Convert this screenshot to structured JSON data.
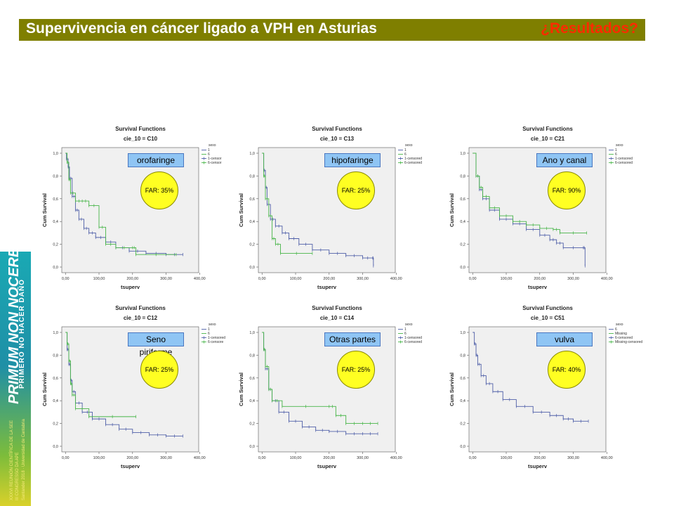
{
  "header": {
    "title": "Supervivencia en cáncer ligado a VPH en Asturias",
    "subtitle": "¿Resultados?"
  },
  "side_banner": {
    "title": "PRIMUM NON NOCERE",
    "subtitle": "PRIMERO NO HACER DAÑO",
    "line1": "XXXVI REUNIÓN CIENTÍFICA DE LA SEE",
    "line2": "III CONGRESSO DA APE",
    "line3": "Santander 2018 · Universidad de Cantabria"
  },
  "colors": {
    "series_1": "#4f5fa8",
    "series_6": "#47b548",
    "header_bg": "#7f7f00",
    "subtitle": "#ff2a00",
    "label_bg": "#8fc5f4",
    "badge_bg": "#ffff22"
  },
  "chart_data": [
    {
      "type": "line",
      "title": "Survival Functions",
      "subtitle": "cie_10 = C10",
      "xlabel": "tsuperv",
      "ylabel": "Cum Survival",
      "xlim": [
        0,
        400
      ],
      "ylim": [
        0,
        1
      ],
      "xticks": [
        "0,00",
        "100,00",
        "200,00",
        "300,00",
        "400,00"
      ],
      "yticks": [
        "0,0",
        "0,2",
        "0,4",
        "0,6",
        "0,8",
        "1,0"
      ],
      "legend_title": "sexo",
      "legend": [
        "1",
        "6",
        "1-censor",
        "6-censor"
      ],
      "site": "orofaringe",
      "far": "FAR: 35%",
      "series": [
        {
          "name": "1",
          "color": "#4f5fa8",
          "x": [
            0,
            3,
            8,
            12,
            20,
            30,
            40,
            55,
            70,
            90,
            120,
            150,
            190,
            240,
            300,
            350
          ],
          "y": [
            1,
            0.95,
            0.88,
            0.78,
            0.62,
            0.5,
            0.42,
            0.34,
            0.3,
            0.26,
            0.22,
            0.17,
            0.14,
            0.12,
            0.11,
            0.11
          ]
        },
        {
          "name": "6",
          "color": "#47b548",
          "x": [
            0,
            5,
            10,
            15,
            30,
            50,
            70,
            100,
            120,
            150,
            200,
            210,
            330
          ],
          "y": [
            1,
            0.92,
            0.77,
            0.65,
            0.58,
            0.58,
            0.54,
            0.35,
            0.2,
            0.17,
            0.17,
            0.11,
            0.11
          ]
        }
      ]
    },
    {
      "type": "line",
      "title": "Survival Functions",
      "subtitle": "cie_10 = C13",
      "xlabel": "tsuperv",
      "ylabel": "Cum Survival",
      "xlim": [
        0,
        400
      ],
      "ylim": [
        0,
        1
      ],
      "xticks": [
        "0,00",
        "100,00",
        "200,00",
        "300,00",
        "400,00"
      ],
      "yticks": [
        "0,0",
        "0,2",
        "0,4",
        "0,6",
        "0,8",
        "1,0"
      ],
      "legend_title": "sexo",
      "legend": [
        "1",
        "6",
        "1-censored",
        "6-censored"
      ],
      "site": "hipofaringe",
      "far": "FAR: 25%",
      "series": [
        {
          "name": "1",
          "color": "#4f5fa8",
          "x": [
            0,
            5,
            10,
            15,
            25,
            40,
            60,
            80,
            110,
            150,
            200,
            250,
            300,
            330,
            332
          ],
          "y": [
            1,
            0.85,
            0.7,
            0.55,
            0.42,
            0.36,
            0.3,
            0.25,
            0.2,
            0.15,
            0.12,
            0.1,
            0.08,
            0.08,
            0.01
          ]
        },
        {
          "name": "6",
          "color": "#47b548",
          "x": [
            0,
            5,
            10,
            20,
            30,
            40,
            55,
            150
          ],
          "y": [
            1,
            0.8,
            0.6,
            0.45,
            0.25,
            0.2,
            0.12,
            0.12
          ]
        }
      ]
    },
    {
      "type": "line",
      "title": "Survival Functions",
      "subtitle": "cie_10 = C21",
      "xlabel": "tsuperv",
      "ylabel": "Cum Survival",
      "xlim": [
        0,
        400
      ],
      "ylim": [
        0,
        1
      ],
      "xticks": [
        "0,00",
        "100,00",
        "200,00",
        "300,00",
        "400,00"
      ],
      "yticks": [
        "0,0",
        "0,2",
        "0,4",
        "0,6",
        "0,8",
        "1,0"
      ],
      "legend_title": "sexo",
      "legend": [
        "1",
        "6",
        "1-censored",
        "6-censored"
      ],
      "site": "Ano y canal",
      "far": "FAR: 90%",
      "series": [
        {
          "name": "1",
          "color": "#4f5fa8",
          "x": [
            0,
            10,
            20,
            30,
            50,
            80,
            120,
            160,
            200,
            230,
            250,
            270,
            330,
            335
          ],
          "y": [
            1,
            0.8,
            0.68,
            0.6,
            0.5,
            0.42,
            0.38,
            0.33,
            0.28,
            0.24,
            0.21,
            0.17,
            0.17,
            0.01
          ]
        },
        {
          "name": "6",
          "color": "#47b548",
          "x": [
            0,
            10,
            20,
            30,
            50,
            80,
            120,
            160,
            200,
            240,
            260,
            340
          ],
          "y": [
            1,
            0.8,
            0.7,
            0.62,
            0.52,
            0.45,
            0.4,
            0.37,
            0.34,
            0.33,
            0.3,
            0.3
          ]
        }
      ]
    },
    {
      "type": "line",
      "title": "Survival Functions",
      "subtitle": "cie_10 = C12",
      "xlabel": "tsuperv",
      "ylabel": "Cum Survival",
      "xlim": [
        0,
        400
      ],
      "ylim": [
        0,
        1
      ],
      "xticks": [
        "0,00",
        "100,00",
        "200,00",
        "300,00",
        "400,00"
      ],
      "yticks": [
        "0,0",
        "0,2",
        "0,4",
        "0,6",
        "0,8",
        "1,0"
      ],
      "legend_title": "sexo",
      "legend": [
        "1",
        "6",
        "1-censored",
        "6-censore"
      ],
      "site": "Seno piriforme",
      "far": "FAR: 25%",
      "series": [
        {
          "name": "1",
          "color": "#4f5fa8",
          "x": [
            0,
            5,
            10,
            15,
            20,
            30,
            50,
            80,
            120,
            160,
            200,
            250,
            300,
            350
          ],
          "y": [
            1,
            0.85,
            0.72,
            0.58,
            0.48,
            0.38,
            0.3,
            0.24,
            0.19,
            0.15,
            0.12,
            0.1,
            0.09,
            0.09
          ]
        },
        {
          "name": "6",
          "color": "#47b548",
          "x": [
            0,
            5,
            10,
            15,
            20,
            30,
            70,
            210
          ],
          "y": [
            1,
            0.9,
            0.75,
            0.55,
            0.45,
            0.33,
            0.26,
            0.26
          ]
        }
      ]
    },
    {
      "type": "line",
      "title": "Survival Functions",
      "subtitle": "cie_10 = C14",
      "xlabel": "tsuperv",
      "ylabel": "Cum Survival",
      "xlim": [
        0,
        400
      ],
      "ylim": [
        0,
        1
      ],
      "xticks": [
        "0,00",
        "100,00",
        "200,00",
        "300,00",
        "400,00"
      ],
      "yticks": [
        "0,0",
        "0,2",
        "0,4",
        "0,6",
        "0,8",
        "1,0"
      ],
      "legend_title": "sexo",
      "legend": [
        "1",
        "6",
        "1-censored",
        "6-censored"
      ],
      "site": "Otras partes",
      "far": "FAR: 25%",
      "series": [
        {
          "name": "1",
          "color": "#4f5fa8",
          "x": [
            0,
            5,
            10,
            20,
            30,
            50,
            80,
            120,
            160,
            200,
            250,
            300,
            345
          ],
          "y": [
            1,
            0.85,
            0.68,
            0.5,
            0.4,
            0.3,
            0.22,
            0.17,
            0.14,
            0.13,
            0.11,
            0.11,
            0.11
          ]
        },
        {
          "name": "6",
          "color": "#47b548",
          "x": [
            0,
            5,
            10,
            20,
            30,
            60,
            200,
            220,
            250,
            300,
            345
          ],
          "y": [
            1,
            0.85,
            0.7,
            0.5,
            0.4,
            0.35,
            0.35,
            0.27,
            0.2,
            0.2,
            0.2
          ]
        }
      ]
    },
    {
      "type": "line",
      "title": "Survival Functions",
      "subtitle": "cie_10 = C51",
      "xlabel": "tsuperv",
      "ylabel": "Cum Survival",
      "xlim": [
        0,
        400
      ],
      "ylim": [
        0,
        1
      ],
      "xticks": [
        "0,00",
        "100,00",
        "200,00",
        "300,00",
        "400,00"
      ],
      "yticks": [
        "0,0",
        "0,2",
        "0,4",
        "0,6",
        "0,8",
        "1,0"
      ],
      "legend_title": "sexo",
      "legend": [
        "6",
        "Missing",
        "6-censored",
        "Missing-censored"
      ],
      "site": "vulva",
      "far": "FAR: 40%",
      "series": [
        {
          "name": "6",
          "color": "#4f5fa8",
          "x": [
            0,
            5,
            10,
            15,
            25,
            40,
            60,
            90,
            130,
            180,
            230,
            270,
            300,
            345
          ],
          "y": [
            1,
            0.9,
            0.8,
            0.72,
            0.62,
            0.55,
            0.48,
            0.41,
            0.35,
            0.3,
            0.27,
            0.24,
            0.22,
            0.22
          ]
        }
      ]
    }
  ]
}
